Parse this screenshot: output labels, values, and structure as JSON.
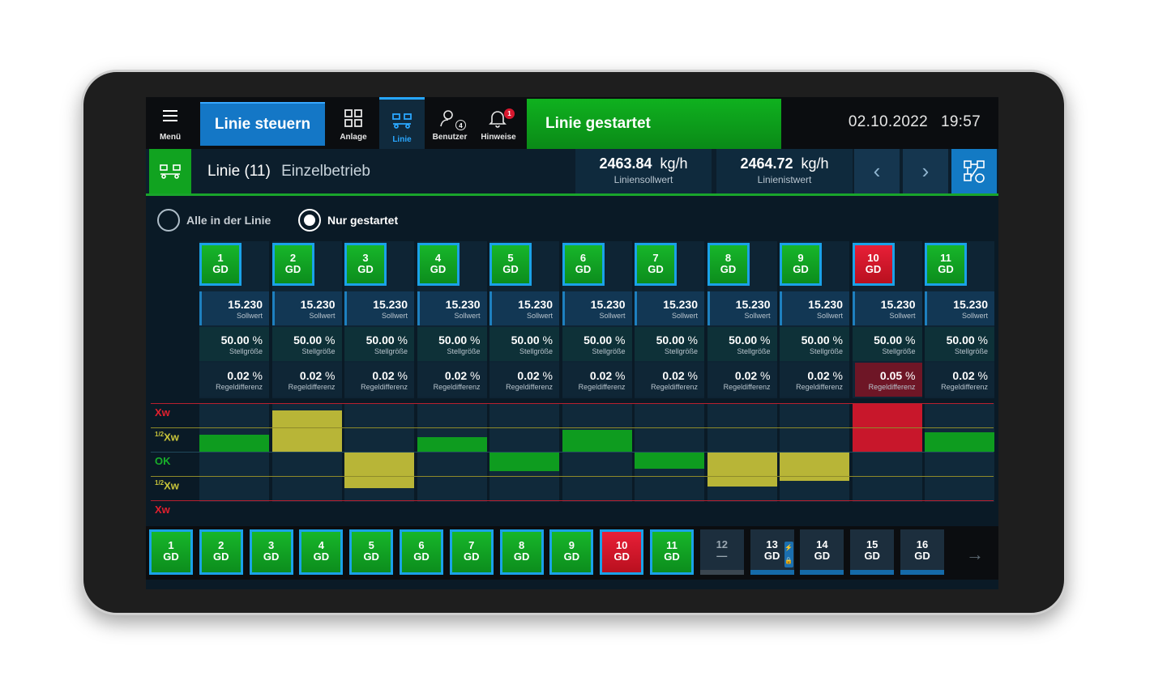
{
  "topbar": {
    "menu_label": "Menü",
    "control_button": "Linie steuern",
    "nav": [
      {
        "label": "Anlage",
        "icon": "grid-icon"
      },
      {
        "label": "Linie",
        "icon": "line-icon"
      },
      {
        "label": "Benutzer",
        "icon": "user-icon",
        "badge": "4"
      },
      {
        "label": "Hinweise",
        "icon": "bell-icon",
        "badge": "1"
      }
    ],
    "status": "Linie gestartet",
    "date": "02.10.2022",
    "time": "19:57"
  },
  "line_header": {
    "title": "Linie",
    "count": "(11)",
    "mode": "Einzelbetrieb",
    "setpoint": {
      "value": "2463.84",
      "unit": "kg/h",
      "label": "Liniensollwert"
    },
    "actual": {
      "value": "2464.72",
      "unit": "kg/h",
      "label": "Linienistwert"
    }
  },
  "filter": {
    "option_all": "Alle in der Linie",
    "option_started": "Nur gestartet",
    "selected": "Nur gestartet"
  },
  "dosers": [
    {
      "id": "1",
      "tag": "GD",
      "sollwert": "15.230",
      "stellgroesse": "50.00",
      "regeldifferenz": "0.02",
      "status": "ok",
      "deviation": 0.35
    },
    {
      "id": "2",
      "tag": "GD",
      "sollwert": "15.230",
      "stellgroesse": "50.00",
      "regeldifferenz": "0.02",
      "status": "ok",
      "deviation": 0.85
    },
    {
      "id": "3",
      "tag": "GD",
      "sollwert": "15.230",
      "stellgroesse": "50.00",
      "regeldifferenz": "0.02",
      "status": "ok",
      "deviation": -0.75
    },
    {
      "id": "4",
      "tag": "GD",
      "sollwert": "15.230",
      "stellgroesse": "50.00",
      "regeldifferenz": "0.02",
      "status": "ok",
      "deviation": 0.3
    },
    {
      "id": "5",
      "tag": "GD",
      "sollwert": "15.230",
      "stellgroesse": "50.00",
      "regeldifferenz": "0.02",
      "status": "ok",
      "deviation": -0.4
    },
    {
      "id": "6",
      "tag": "GD",
      "sollwert": "15.230",
      "stellgroesse": "50.00",
      "regeldifferenz": "0.02",
      "status": "ok",
      "deviation": 0.45
    },
    {
      "id": "7",
      "tag": "GD",
      "sollwert": "15.230",
      "stellgroesse": "50.00",
      "regeldifferenz": "0.02",
      "status": "ok",
      "deviation": -0.35
    },
    {
      "id": "8",
      "tag": "GD",
      "sollwert": "15.230",
      "stellgroesse": "50.00",
      "regeldifferenz": "0.02",
      "status": "ok",
      "deviation": -0.72
    },
    {
      "id": "9",
      "tag": "GD",
      "sollwert": "15.230",
      "stellgroesse": "50.00",
      "regeldifferenz": "0.02",
      "status": "ok",
      "deviation": -0.6
    },
    {
      "id": "10",
      "tag": "GD",
      "sollwert": "15.230",
      "stellgroesse": "50.00",
      "regeldifferenz": "0.05",
      "status": "alarm",
      "deviation": 1.0
    },
    {
      "id": "11",
      "tag": "GD",
      "sollwert": "15.230",
      "stellgroesse": "50.00",
      "regeldifferenz": "0.02",
      "status": "ok",
      "deviation": 0.4
    }
  ],
  "cell_labels": {
    "sollwert": "Sollwert",
    "stellgroesse": "Stellgröße",
    "regeldifferenz": "Regeldifferenz",
    "unit": "%"
  },
  "deviation_scale": {
    "xw": "Xw",
    "half_prefix": "1/2",
    "ok": "OK",
    "colors": {
      "ok": "#0e9c1f",
      "half": "#b8b537",
      "alarm": "#c8172b"
    }
  },
  "bottom_tiles": [
    {
      "id": "1",
      "tag": "GD",
      "state": "green"
    },
    {
      "id": "2",
      "tag": "GD",
      "state": "green"
    },
    {
      "id": "3",
      "tag": "GD",
      "state": "green"
    },
    {
      "id": "4",
      "tag": "GD",
      "state": "green"
    },
    {
      "id": "5",
      "tag": "GD",
      "state": "green"
    },
    {
      "id": "6",
      "tag": "GD",
      "state": "green"
    },
    {
      "id": "7",
      "tag": "GD",
      "state": "green"
    },
    {
      "id": "8",
      "tag": "GD",
      "state": "green"
    },
    {
      "id": "9",
      "tag": "GD",
      "state": "green"
    },
    {
      "id": "10",
      "tag": "GD",
      "state": "red"
    },
    {
      "id": "11",
      "tag": "GD",
      "state": "green"
    },
    {
      "id": "12",
      "tag": "—",
      "state": "off"
    },
    {
      "id": "13",
      "tag": "GD",
      "state": "gray",
      "locked": true
    },
    {
      "id": "14",
      "tag": "GD",
      "state": "gray"
    },
    {
      "id": "15",
      "tag": "GD",
      "state": "gray"
    },
    {
      "id": "16",
      "tag": "GD",
      "state": "gray"
    }
  ],
  "colors": {
    "accent": "#1477c6",
    "running": "#0fb11f",
    "alarm": "#d8182f"
  }
}
